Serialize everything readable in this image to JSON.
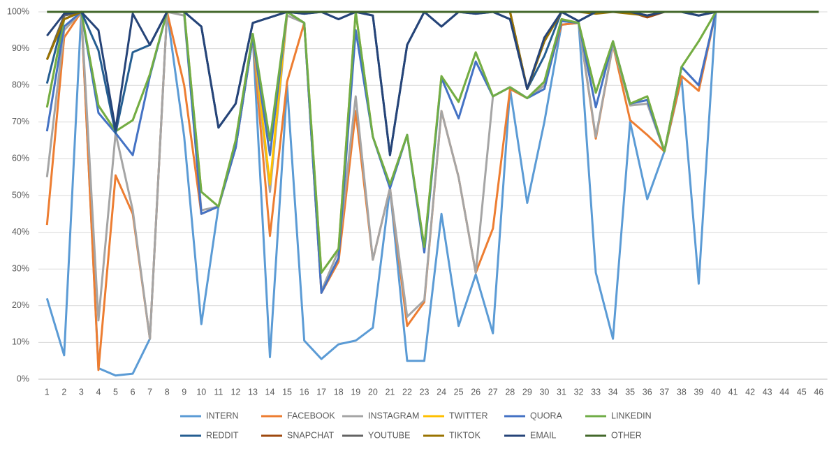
{
  "chart_data": {
    "type": "line",
    "categories": [
      "1",
      "2",
      "3",
      "4",
      "5",
      "6",
      "7",
      "8",
      "9",
      "10",
      "11",
      "12",
      "13",
      "14",
      "15",
      "16",
      "17",
      "18",
      "19",
      "20",
      "21",
      "22",
      "23",
      "24",
      "25",
      "26",
      "27",
      "28",
      "29",
      "30",
      "31",
      "32",
      "33",
      "34",
      "35",
      "36",
      "37",
      "38",
      "39",
      "40",
      "41",
      "42",
      "43",
      "44",
      "45",
      "46"
    ],
    "ylim": [
      0,
      100
    ],
    "yticks": [
      {
        "value": 0,
        "label": "0%"
      },
      {
        "value": 10,
        "label": "10%"
      },
      {
        "value": 20,
        "label": "20%"
      },
      {
        "value": 30,
        "label": "30%"
      },
      {
        "value": 40,
        "label": "40%"
      },
      {
        "value": 50,
        "label": "50%"
      },
      {
        "value": 60,
        "label": "60%"
      },
      {
        "value": 70,
        "label": "70%"
      },
      {
        "value": 80,
        "label": "80%"
      },
      {
        "value": 90,
        "label": "90%"
      },
      {
        "value": 100,
        "label": "100%"
      }
    ],
    "grid": true,
    "legend": "bottom",
    "series": [
      {
        "name": "INTERN",
        "color": "#5b9bd5",
        "values": [
          22,
          6.5,
          100,
          3,
          1,
          1.5,
          11,
          100,
          66,
          15,
          47,
          63,
          93,
          6,
          80,
          10.5,
          5.5,
          9.5,
          10.5,
          14,
          52,
          5,
          5,
          45,
          14.5,
          28.5,
          12.5,
          79,
          48,
          70,
          96.5,
          97,
          29,
          11,
          70,
          49,
          62,
          82,
          26,
          100,
          null,
          null,
          null,
          null,
          null,
          null
        ]
      },
      {
        "name": "FACEBOOK",
        "color": "#ed7d31",
        "values": [
          42,
          93,
          100,
          2.5,
          55.5,
          45,
          11,
          100,
          80,
          45,
          47,
          63,
          93,
          39,
          81,
          97,
          23.5,
          32,
          73,
          32.5,
          52,
          14.5,
          21,
          73,
          55,
          29,
          41,
          79,
          76.5,
          80,
          96.5,
          97,
          65.5,
          91,
          70.5,
          66.5,
          62,
          82.5,
          78.5,
          100,
          null,
          null,
          null,
          null,
          null,
          null
        ]
      },
      {
        "name": "INSTAGRAM",
        "color": "#a5a5a5",
        "values": [
          55,
          95,
          100,
          16,
          67,
          46,
          11,
          100,
          99,
          46,
          47,
          63,
          93,
          51,
          99,
          97,
          24,
          35,
          77,
          32.5,
          52,
          17,
          21.5,
          73,
          55,
          29,
          77,
          79.5,
          76.5,
          80,
          97.5,
          97,
          66,
          91,
          74.5,
          75,
          62,
          85,
          80,
          100,
          null,
          null,
          null,
          null,
          null,
          null
        ]
      },
      {
        "name": "TWITTER",
        "color": "#ffc000",
        "values": [
          74,
          98,
          100,
          74.5,
          67.5,
          70.5,
          83,
          100,
          100,
          51,
          47,
          65,
          94,
          53,
          100,
          97,
          29,
          35.5,
          100,
          66,
          53,
          66.5,
          36,
          82.5,
          75.5,
          89,
          77,
          79.5,
          76.5,
          81,
          98,
          97,
          78,
          92,
          75,
          77,
          62,
          85,
          92,
          100,
          null,
          null,
          null,
          null,
          null,
          null
        ]
      },
      {
        "name": "QUORA",
        "color": "#4472c4",
        "values": [
          67.5,
          96,
          100,
          72.5,
          67,
          61,
          82.5,
          100,
          100,
          45,
          47,
          63,
          93,
          61,
          100,
          97,
          23.5,
          33,
          95,
          66,
          52,
          66.5,
          34.5,
          82,
          71,
          86.5,
          77,
          79.5,
          76.5,
          79,
          97.5,
          97,
          74,
          92,
          75,
          76,
          62,
          85,
          80,
          100,
          null,
          null,
          null,
          null,
          null,
          null
        ]
      },
      {
        "name": "LINKEDIN",
        "color": "#70ad47",
        "values": [
          74,
          98,
          100,
          74.5,
          67.5,
          70.5,
          83,
          100,
          100,
          51,
          47,
          65,
          94,
          65,
          100,
          97,
          29,
          35.5,
          100,
          66,
          53,
          66.5,
          36,
          82.5,
          75.5,
          89,
          77,
          79.5,
          76.5,
          81,
          98,
          97,
          78,
          92,
          75,
          77,
          62,
          85,
          92,
          100,
          null,
          null,
          null,
          null,
          null,
          null
        ]
      },
      {
        "name": "REDDIT",
        "color": "#255e91",
        "values": [
          80.5,
          99,
          100,
          89.5,
          67,
          89,
          91,
          100,
          100,
          96,
          68.5,
          75,
          97,
          98.5,
          100,
          99.5,
          100,
          98,
          100,
          99,
          61,
          91,
          100,
          96,
          100,
          99.5,
          100,
          98,
          79,
          88,
          100,
          97.5,
          100,
          100,
          100,
          99,
          100,
          100,
          99,
          100,
          null,
          null,
          null,
          null,
          null,
          null
        ]
      },
      {
        "name": "SNAPCHAT",
        "color": "#9e480e",
        "values": [
          87,
          98,
          100,
          100,
          100,
          100,
          100,
          100,
          100,
          100,
          100,
          100,
          100,
          100,
          100,
          100,
          100,
          100,
          100,
          100,
          100,
          100,
          100,
          100,
          100,
          100,
          100,
          100,
          79,
          92,
          100,
          100,
          100,
          100,
          100,
          98.5,
          100,
          100,
          100,
          100,
          null,
          null,
          null,
          null,
          null,
          null
        ]
      },
      {
        "name": "YOUTUBE",
        "color": "#636363",
        "values": [
          87,
          99,
          100,
          100,
          100,
          100,
          100,
          100,
          100,
          100,
          100,
          100,
          100,
          100,
          100,
          100,
          100,
          100,
          100,
          100,
          100,
          100,
          100,
          100,
          100,
          100,
          100,
          100,
          79,
          92,
          100,
          100,
          100,
          100,
          100,
          99,
          100,
          100,
          100,
          100,
          null,
          null,
          null,
          null,
          null,
          null
        ]
      },
      {
        "name": "TIKTOK",
        "color": "#997300",
        "values": [
          87,
          98,
          100,
          100,
          100,
          100,
          100,
          100,
          100,
          100,
          100,
          100,
          100,
          100,
          100,
          100,
          100,
          100,
          100,
          100,
          100,
          100,
          100,
          100,
          100,
          100,
          100,
          100,
          79,
          92,
          100,
          100,
          99.5,
          100,
          99.5,
          99,
          100,
          100,
          100,
          100,
          null,
          null,
          null,
          null,
          null,
          null
        ]
      },
      {
        "name": "EMAIL",
        "color": "#264478",
        "values": [
          93.5,
          99.5,
          100,
          95,
          68,
          99.5,
          91,
          100,
          100,
          96,
          68.5,
          75,
          97,
          98.5,
          100,
          99.5,
          100,
          98,
          100,
          99,
          61,
          91,
          100,
          96,
          100,
          99.5,
          100,
          98,
          79,
          93,
          100,
          97.5,
          100,
          100,
          100,
          99,
          100,
          100,
          99,
          100,
          null,
          null,
          null,
          null,
          null,
          null
        ]
      },
      {
        "name": "OTHER",
        "color": "#43682b",
        "values": [
          100,
          100,
          100,
          100,
          100,
          100,
          100,
          100,
          100,
          100,
          100,
          100,
          100,
          100,
          100,
          100,
          100,
          100,
          100,
          100,
          100,
          100,
          100,
          100,
          100,
          100,
          100,
          100,
          100,
          100,
          100,
          100,
          100,
          100,
          100,
          100,
          100,
          100,
          100,
          100,
          100,
          100,
          100,
          100,
          100,
          100
        ]
      }
    ]
  }
}
